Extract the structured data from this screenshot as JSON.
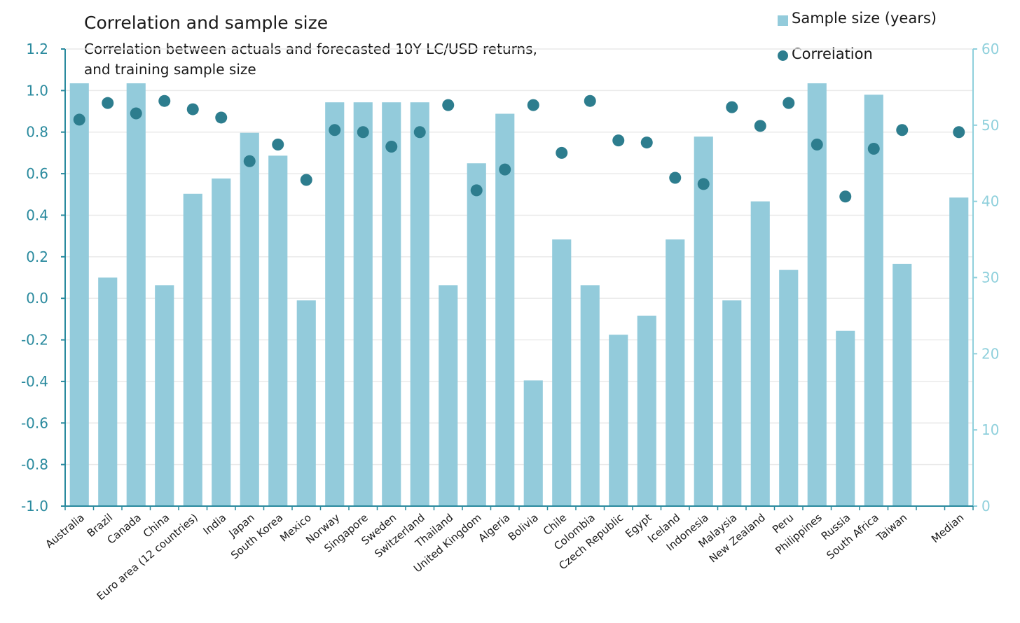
{
  "chart_data": {
    "type": "bar+scatter",
    "title": "Correlation and sample size",
    "subtitle_lines": [
      "Correlation between actuals and forecasted 10Y LC/USD returns,",
      "and training sample size"
    ],
    "categories": [
      "Australia",
      "Brazil",
      "Canada",
      "China",
      "Euro area (12 countries)",
      "India",
      "Japan",
      "South Korea",
      "Mexico",
      "Norway",
      "Singapore",
      "Sweden",
      "Switzerland",
      "Thailand",
      "United Kingdom",
      "Algeria",
      "Bolivia",
      "Chile",
      "Colombia",
      "Czech Republic",
      "Egypt",
      "Iceland",
      "Indonesia",
      "Malaysia",
      "New Zealand",
      "Peru",
      "Philippines",
      "Russia",
      "South Africa",
      "Taiwan",
      "",
      "Median"
    ],
    "series": [
      {
        "name": "Sample size (years)",
        "type": "bar",
        "axis": "right",
        "color": "#93cbdb",
        "values": [
          55.5,
          30,
          55.5,
          29,
          41,
          43,
          49,
          46,
          27,
          53,
          53,
          53,
          53,
          29,
          45,
          51.5,
          16.5,
          35,
          29,
          22.5,
          25,
          35,
          48.5,
          27,
          40,
          31,
          55.5,
          23,
          54,
          31.8,
          null,
          40.5
        ]
      },
      {
        "name": "Correlation",
        "type": "scatter",
        "axis": "left",
        "color": "#2d7d8e",
        "values": [
          0.86,
          0.94,
          0.89,
          0.95,
          0.91,
          0.87,
          0.66,
          0.74,
          0.57,
          0.81,
          0.8,
          0.73,
          0.8,
          0.93,
          0.52,
          0.62,
          0.93,
          0.7,
          0.95,
          0.76,
          0.75,
          0.58,
          0.55,
          0.92,
          0.83,
          0.94,
          0.74,
          0.49,
          0.72,
          0.81,
          null,
          0.8
        ]
      }
    ],
    "y_left": {
      "ylim": [
        -1.0,
        1.2
      ],
      "ticks": [
        -1.0,
        -0.8,
        -0.6,
        -0.4,
        -0.2,
        0.0,
        0.2,
        0.4,
        0.6,
        0.8,
        1.0,
        1.2
      ],
      "tick_labels": [
        "-1.0",
        "-0.8",
        "-0.6",
        "-0.4",
        "-0.2",
        "0.0",
        "0.2",
        "0.4",
        "0.6",
        "0.8",
        "1.0",
        "1.2"
      ],
      "color": "#2a8a9e"
    },
    "y_right": {
      "ylim": [
        0,
        60
      ],
      "ticks": [
        0,
        10,
        20,
        30,
        40,
        50,
        60
      ],
      "tick_labels": [
        "0",
        "10",
        "20",
        "30",
        "40",
        "50",
        "60"
      ],
      "color": "#8fd0dc"
    },
    "grid": true,
    "legend_position": "top-right",
    "xlabel": "",
    "ylabel": ""
  }
}
